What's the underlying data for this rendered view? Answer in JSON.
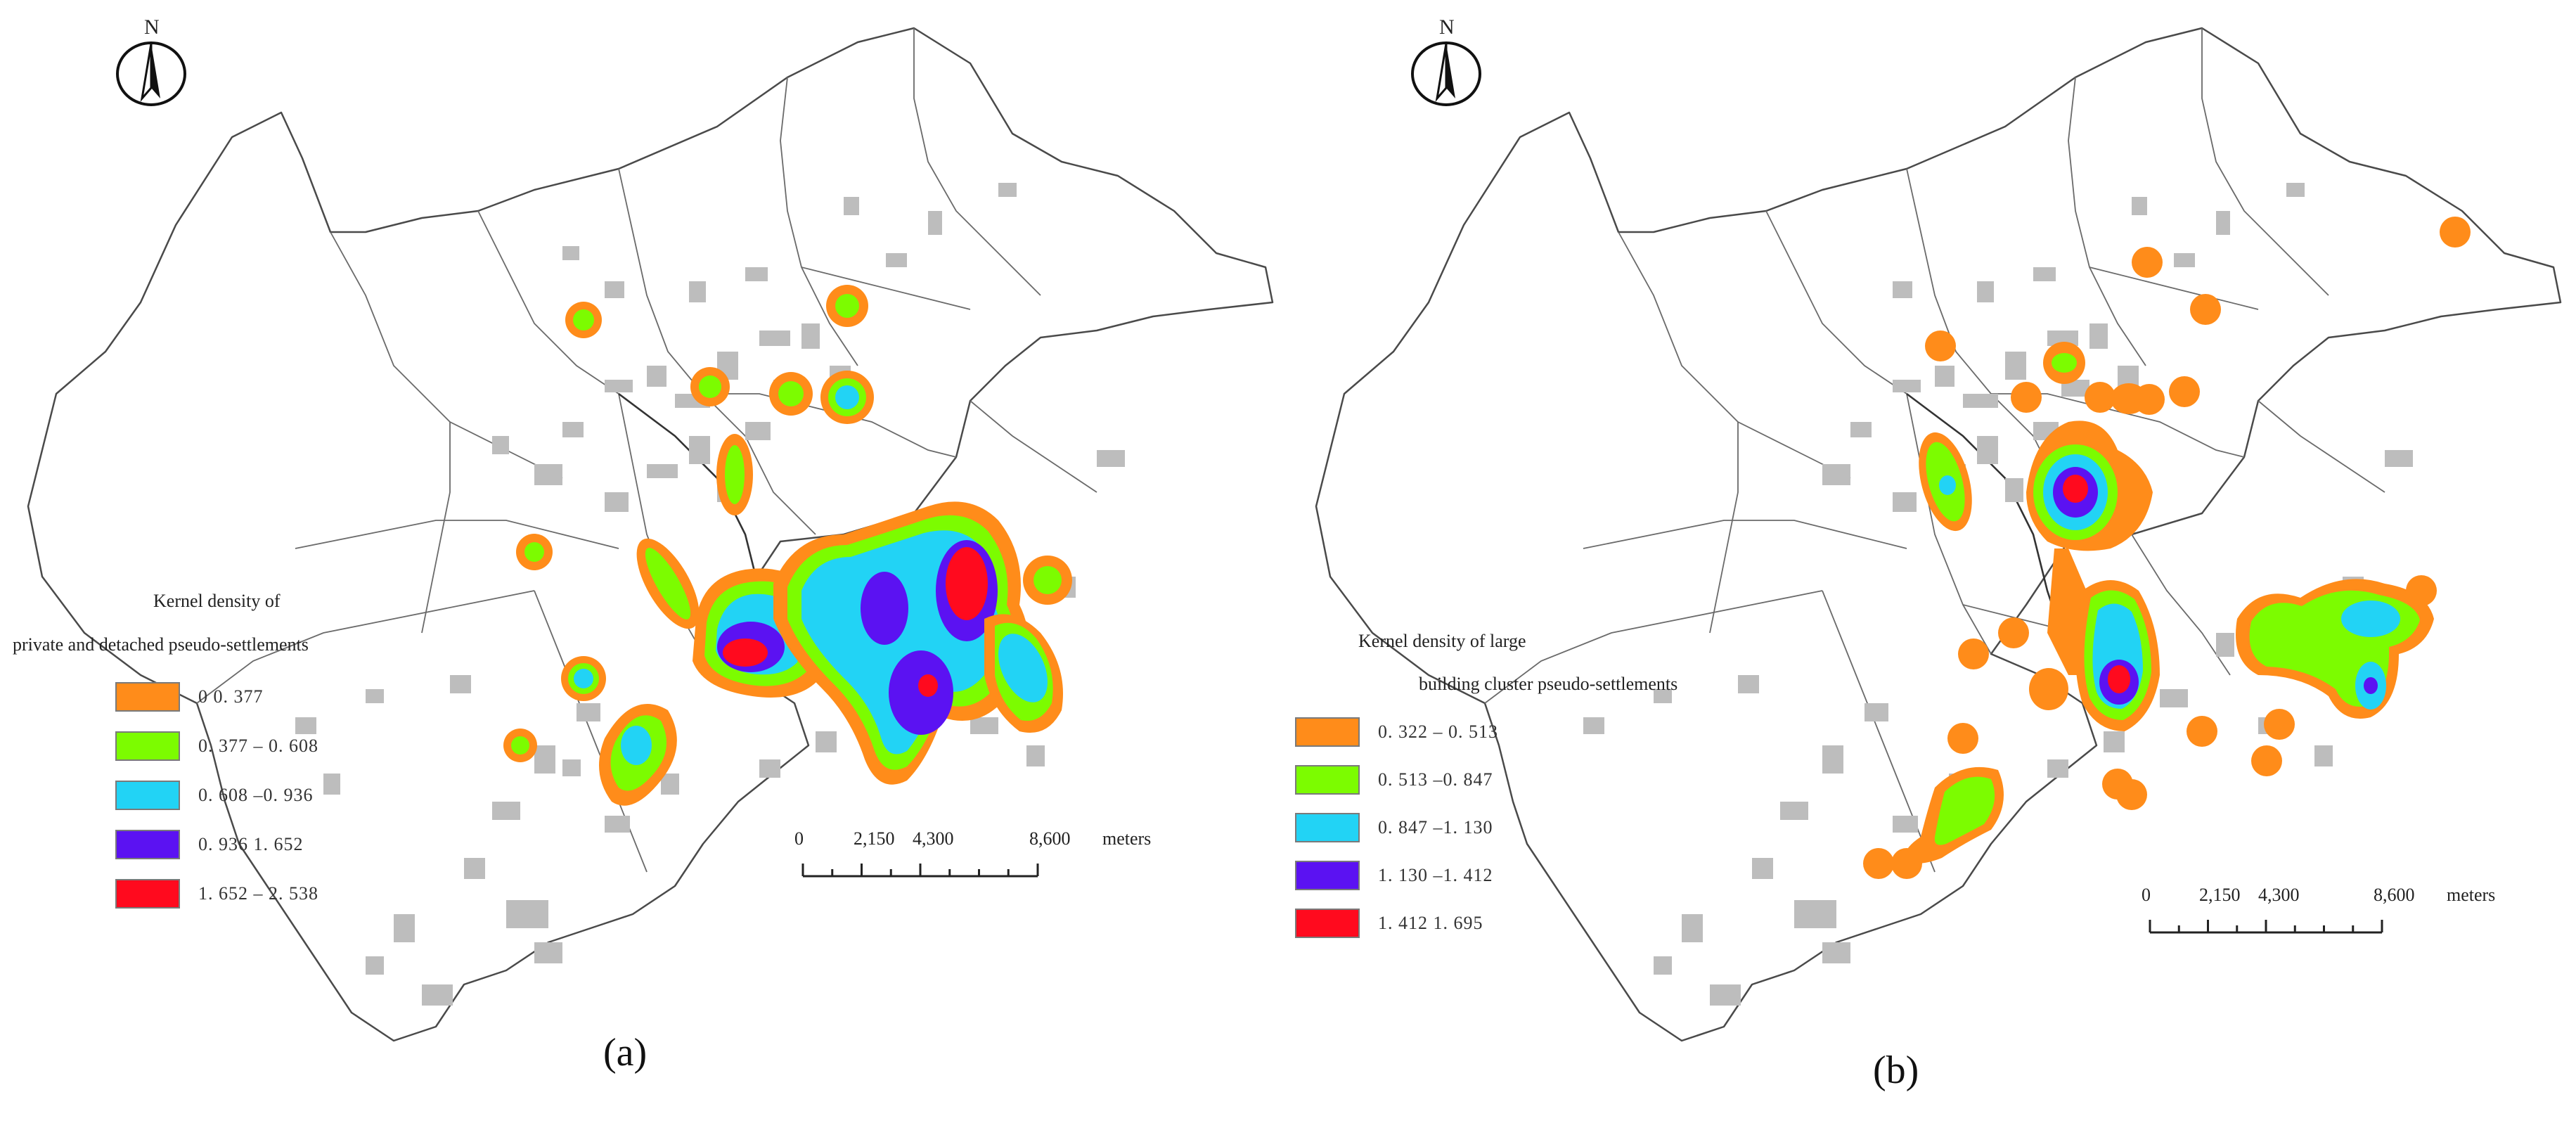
{
  "panels": [
    {
      "id": "a",
      "label": "(a)",
      "north": "N",
      "legend": {
        "title_line1": "Kernel density of",
        "title_line2": "private and detached pseudo-settlements",
        "classes": [
          {
            "range": "0    0. 377",
            "color": "#ff8c1a"
          },
          {
            "range": "0. 377  – 0. 608",
            "color": "#7cfc00"
          },
          {
            "range": "0. 608  –0. 936",
            "color": "#22d3f5"
          },
          {
            "range": "0. 936    1. 652",
            "color": "#5b12f2"
          },
          {
            "range": "1. 652  –  2. 538",
            "color": "#ff0a1e"
          }
        ]
      },
      "scalebar": {
        "ticks": [
          "0",
          "2,150",
          "4,300",
          "8,600"
        ],
        "unit": "meters"
      }
    },
    {
      "id": "b",
      "label": "(b)",
      "north": "N",
      "legend": {
        "title_line1": "Kernel density of large",
        "title_line2": "building cluster pseudo-settlements",
        "classes": [
          {
            "range": "0. 322  –  0. 513",
            "color": "#ff8c1a"
          },
          {
            "range": "0. 513  –0. 847",
            "color": "#7cfc00"
          },
          {
            "range": "0. 847  –1. 130",
            "color": "#22d3f5"
          },
          {
            "range": "1. 130  –1. 412",
            "color": "#5b12f2"
          },
          {
            "range": "1. 412    1. 695",
            "color": "#ff0a1e"
          }
        ]
      },
      "scalebar": {
        "ticks": [
          "0",
          "2,150",
          "4,300",
          "8,600"
        ],
        "unit": "meters"
      }
    }
  ]
}
